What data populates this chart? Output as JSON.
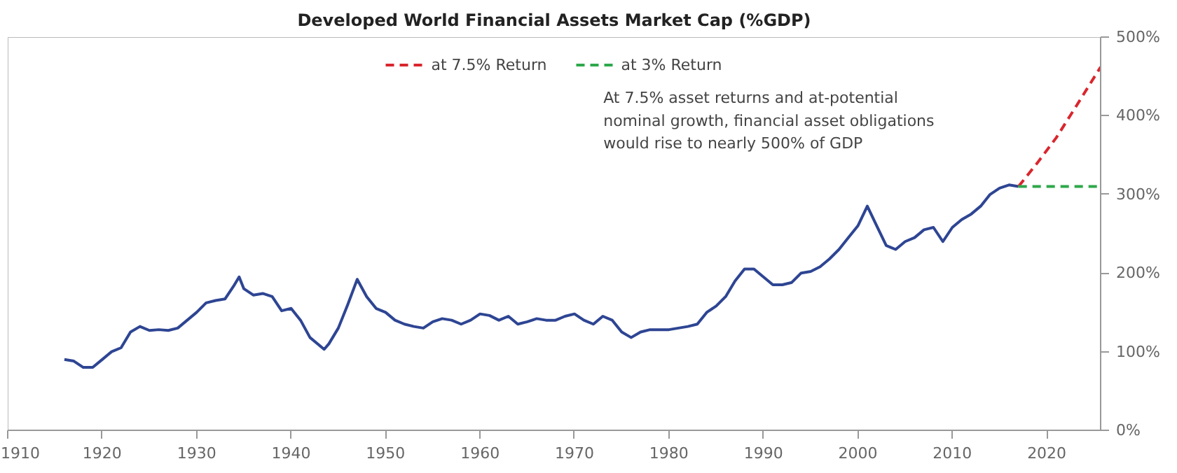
{
  "chart_data": {
    "type": "line",
    "title": "Developed World Financial Assets Market Cap (%GDP)",
    "xlim": [
      1910,
      2025.7
    ],
    "xticks": [
      1910,
      1920,
      1930,
      1940,
      1950,
      1960,
      1970,
      1980,
      1990,
      2000,
      2010,
      2020
    ],
    "ylim": [
      0,
      500
    ],
    "yticks": [
      {
        "value": 0,
        "label": "0%"
      },
      {
        "value": 100,
        "label": "100%"
      },
      {
        "value": 200,
        "label": "200%"
      },
      {
        "value": 300,
        "label": "300%"
      },
      {
        "value": 400,
        "label": "400%"
      },
      {
        "value": 500,
        "label": "500%"
      }
    ],
    "grid": false,
    "legend": "top",
    "series": [
      {
        "color": "#2e4593",
        "line_style": "solid",
        "x": [
          1916,
          1917,
          1918,
          1919,
          1920,
          1921,
          1922,
          1923,
          1924,
          1925,
          1926,
          1927,
          1928,
          1929,
          1930,
          1931,
          1932,
          1933,
          1934,
          1934.5,
          1935,
          1936,
          1937,
          1938,
          1939,
          1940,
          1941,
          1942,
          1943.5,
          1944,
          1945,
          1946,
          1947,
          1948,
          1949,
          1950,
          1951,
          1952,
          1953,
          1954,
          1955,
          1956,
          1957,
          1958,
          1959,
          1960,
          1961,
          1962,
          1963,
          1964,
          1965,
          1966,
          1967,
          1968,
          1969,
          1970,
          1971,
          1972,
          1973,
          1974,
          1975,
          1976,
          1977,
          1978,
          1979,
          1980,
          1981,
          1982,
          1983,
          1984,
          1985,
          1986,
          1987,
          1988,
          1989,
          1990,
          1991,
          1992,
          1993,
          1994,
          1995,
          1996,
          1997,
          1998,
          1999,
          2000,
          2001,
          2002,
          2003,
          2004,
          2005,
          2006,
          2007,
          2008,
          2009,
          2010,
          2011,
          2012,
          2013,
          2014,
          2015,
          2016,
          2017
        ],
        "values": [
          90,
          88,
          80,
          80,
          90,
          100,
          105,
          125,
          132,
          127,
          128,
          127,
          130,
          140,
          150,
          162,
          165,
          167,
          185,
          195,
          180,
          172,
          174,
          170,
          152,
          155,
          140,
          118,
          103,
          110,
          130,
          160,
          192,
          170,
          155,
          150,
          140,
          135,
          132,
          130,
          138,
          142,
          140,
          135,
          140,
          148,
          146,
          140,
          145,
          135,
          138,
          142,
          140,
          140,
          145,
          148,
          140,
          135,
          145,
          140,
          125,
          118,
          125,
          128,
          128,
          128,
          130,
          132,
          135,
          150,
          158,
          170,
          190,
          205,
          205,
          195,
          185,
          185,
          188,
          200,
          202,
          208,
          218,
          230,
          245,
          260,
          285,
          260,
          235,
          230,
          240,
          245,
          255,
          258,
          240,
          258,
          268,
          275,
          285,
          300,
          308,
          312,
          310
        ]
      },
      {
        "name": "at 7.5% Return",
        "color": "#d9262e",
        "line_style": "dashed",
        "x": [
          2017,
          2019,
          2021,
          2023,
          2025.7
        ],
        "values": [
          310,
          340,
          372,
          410,
          462
        ]
      },
      {
        "name": "at 3% Return",
        "color": "#2ea84a",
        "line_style": "dashed",
        "x": [
          2017,
          2025.7
        ],
        "values": [
          310,
          310
        ]
      }
    ],
    "annotations": [
      "At 7.5% asset returns and at-potential\nnominal growth, financial asset obligations\nwould rise to nearly 500% of GDP"
    ]
  }
}
